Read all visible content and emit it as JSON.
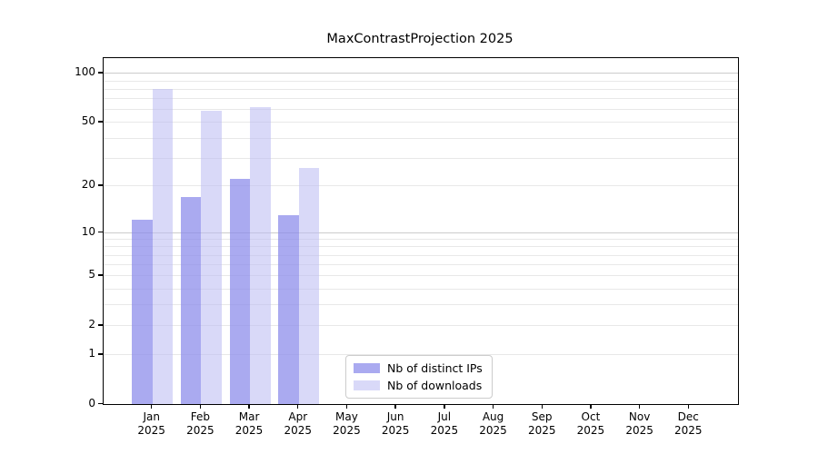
{
  "chart_data": {
    "type": "bar",
    "title": "MaxContrastProjection 2025",
    "year_label": "2025",
    "categories": [
      "Jan",
      "Feb",
      "Mar",
      "Apr",
      "May",
      "Jun",
      "Jul",
      "Aug",
      "Sep",
      "Oct",
      "Nov",
      "Dec"
    ],
    "series": [
      {
        "name": "Nb of distinct IPs",
        "color": "rgba(137,137,234,0.72)",
        "values": [
          12,
          17,
          22,
          13,
          0,
          0,
          0,
          0,
          0,
          0,
          0,
          0
        ]
      },
      {
        "name": "Nb of downloads",
        "color": "rgba(185,185,242,0.55)",
        "values": [
          80,
          59,
          62,
          26,
          0,
          0,
          0,
          0,
          0,
          0,
          0,
          0
        ]
      }
    ],
    "yscale": "log1p",
    "ylim": [
      0,
      123.3
    ],
    "y_major_ticks": [
      0,
      1,
      2,
      5,
      10,
      20,
      50,
      100
    ],
    "y_major_gridlines": [
      10,
      100
    ],
    "y_minor_gridlines": [
      1,
      2,
      3,
      4,
      5,
      6,
      7,
      8,
      9,
      20,
      30,
      40,
      50,
      60,
      70,
      80,
      90
    ],
    "grid": true,
    "legend_position": "lower center",
    "colors": {
      "spine": "#000000",
      "grid_major": "#cccccc",
      "grid_minor": "#e8e8e8",
      "text": "#000000"
    }
  }
}
